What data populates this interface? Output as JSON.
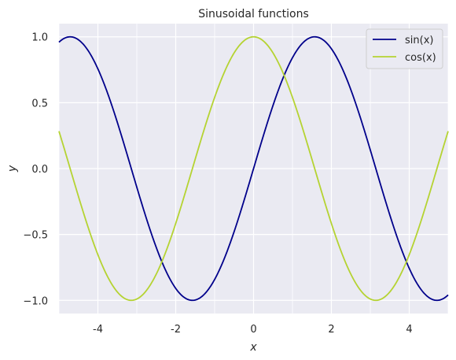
{
  "chart_data": {
    "type": "line",
    "title": "Sinusoidal functions",
    "xlabel": "x",
    "ylabel": "y",
    "xlim": [
      -5,
      5
    ],
    "ylim": [
      -1.1,
      1.1
    ],
    "grid": true,
    "legend_position": "top-right",
    "background": "#eaeaf2",
    "grid_color": "#ffffff",
    "x_major_ticks": [
      {
        "value": -4,
        "label": "-4"
      },
      {
        "value": -2,
        "label": "-2"
      },
      {
        "value": 0,
        "label": "0"
      },
      {
        "value": 2,
        "label": "2"
      },
      {
        "value": 4,
        "label": "4"
      }
    ],
    "x_minor_grid": [
      -5,
      -3,
      -1,
      1,
      3,
      5
    ],
    "y_ticks": [
      {
        "value": 1.0,
        "label": "1.0"
      },
      {
        "value": 0.5,
        "label": "0.5"
      },
      {
        "value": 0.0,
        "label": "0.0"
      },
      {
        "value": -0.5,
        "label": "−0.5"
      },
      {
        "value": -1.0,
        "label": "−1.0"
      }
    ],
    "series": [
      {
        "name": "sin(x)",
        "function": "sin",
        "color": "#00008b"
      },
      {
        "name": "cos(x)",
        "function": "cos",
        "color": "#b5d332"
      }
    ]
  }
}
